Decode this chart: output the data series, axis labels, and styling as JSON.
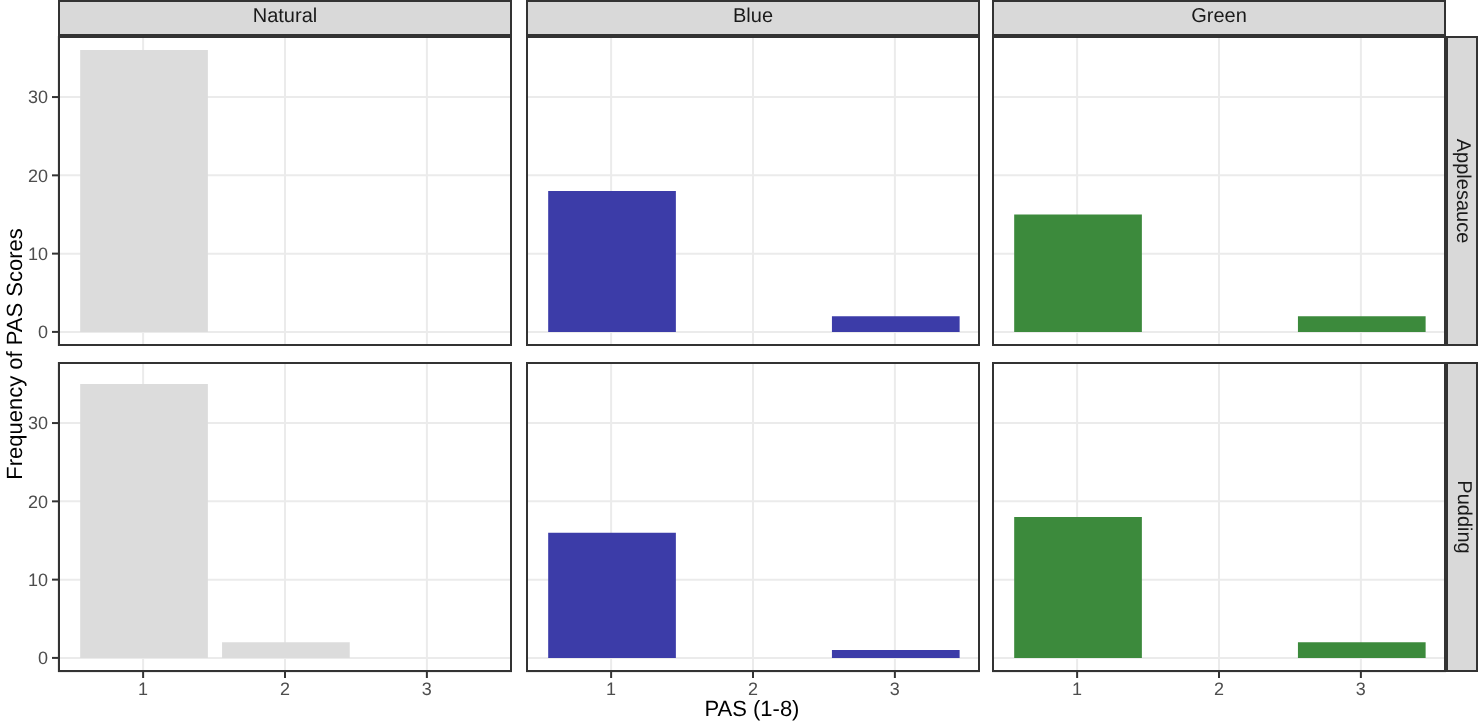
{
  "chart_data": [
    {
      "type": "bar",
      "title": "Natural",
      "x": [
        1,
        2,
        3
      ],
      "values": [
        36,
        0,
        0
      ],
      "color": "#dcdcdc",
      "ylabel": "Frequency of PAS Scores",
      "xlim": [
        0.4,
        3.6
      ],
      "xticks": [
        1,
        2,
        3
      ],
      "ylim": [
        -1.8,
        37.8
      ],
      "yticks": [
        0,
        10,
        20,
        30
      ],
      "grid": true,
      "legend": false,
      "tick_labels": "y"
    },
    {
      "type": "bar",
      "title": "Blue",
      "x": [
        1,
        2,
        3
      ],
      "values": [
        18,
        0,
        2
      ],
      "color": "#3c3ca8",
      "xlim": [
        0.4,
        3.6
      ],
      "xticks": [
        1,
        2,
        3
      ],
      "ylim": [
        -1.8,
        37.8
      ],
      "yticks": [
        0,
        10,
        20,
        30
      ],
      "grid": true,
      "legend": false,
      "tick_labels": false
    },
    {
      "type": "bar",
      "title": "Green",
      "annotations": [
        "Applesauce"
      ],
      "x": [
        1,
        2,
        3
      ],
      "values": [
        15,
        0,
        2
      ],
      "color": "#3c8a3c",
      "xlim": [
        0.4,
        3.6
      ],
      "xticks": [
        1,
        2,
        3
      ],
      "ylim": [
        -1.8,
        37.8
      ],
      "yticks": [
        0,
        10,
        20,
        30
      ],
      "grid": true,
      "legend": false,
      "tick_labels": false
    },
    {
      "type": "bar",
      "x": [
        1,
        2,
        3
      ],
      "values": [
        35,
        2,
        0
      ],
      "color": "#dcdcdc",
      "xlim": [
        0.4,
        3.6
      ],
      "xticks": [
        1,
        2,
        3
      ],
      "ylim": [
        -1.8,
        37.8
      ],
      "yticks": [
        0,
        10,
        20,
        30
      ],
      "grid": true,
      "legend": false
    },
    {
      "type": "bar",
      "xlabel": "PAS (1-8)",
      "x": [
        1,
        2,
        3
      ],
      "values": [
        16,
        0,
        1
      ],
      "color": "#3c3ca8",
      "xlim": [
        0.4,
        3.6
      ],
      "xticks": [
        1,
        2,
        3
      ],
      "ylim": [
        -1.8,
        37.8
      ],
      "yticks": [
        0,
        10,
        20,
        30
      ],
      "grid": true,
      "legend": false,
      "tick_labels": "x"
    },
    {
      "type": "bar",
      "annotations": [
        "Pudding"
      ],
      "x": [
        1,
        2,
        3
      ],
      "values": [
        18,
        0,
        2
      ],
      "color": "#3c8a3c",
      "xlim": [
        0.4,
        3.6
      ],
      "xticks": [
        1,
        2,
        3
      ],
      "ylim": [
        -1.8,
        37.8
      ],
      "yticks": [
        0,
        10,
        20,
        30
      ],
      "grid": true,
      "legend": false,
      "tick_labels": "x"
    }
  ]
}
